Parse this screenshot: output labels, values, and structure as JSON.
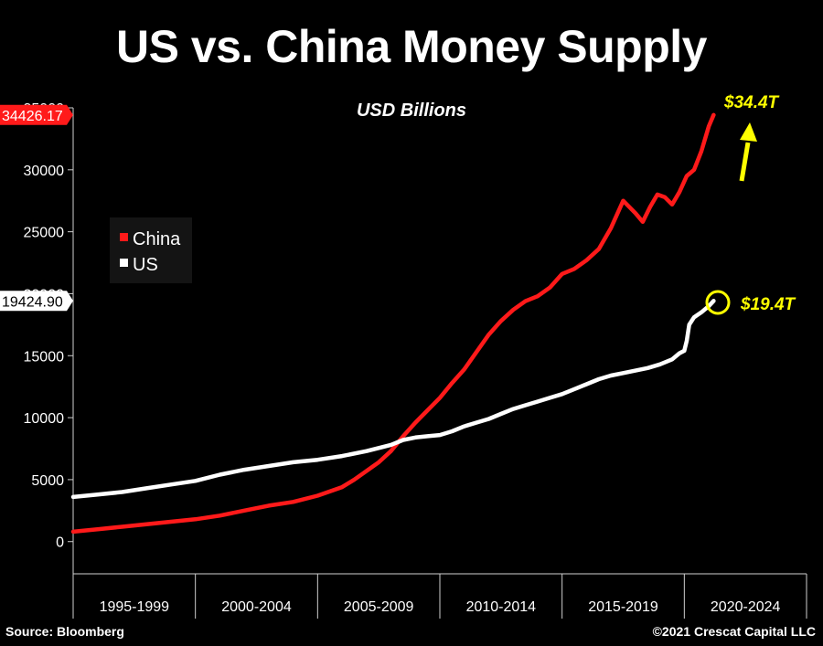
{
  "title": "US vs. China Money Supply",
  "footer": {
    "source": "Source: Bloomberg",
    "copyright": "©2021 Crescat Capital LLC"
  },
  "chart_data": {
    "type": "line",
    "subtitle": "USD Billions",
    "xlabel": "",
    "ylabel": "",
    "xlim": [
      1995,
      2025
    ],
    "ylim": [
      -2600,
      35000
    ],
    "y_ticks": [
      0,
      5000,
      10000,
      15000,
      20000,
      25000,
      30000,
      35000
    ],
    "x_period_labels": [
      "1995-1999",
      "2000-2004",
      "2005-2009",
      "2010-2014",
      "2015-2019",
      "2020-2024"
    ],
    "grid": false,
    "legend": {
      "position": "upper-left",
      "entries": [
        "China",
        "US"
      ]
    },
    "series": [
      {
        "name": "China",
        "color": "#ff1a1a",
        "last_value_label": "34426.17",
        "x": [
          1995,
          1996,
          1997,
          1998,
          1999,
          2000,
          2001,
          2002,
          2003,
          2004,
          2005,
          2006,
          2006.5,
          2007,
          2007.5,
          2008,
          2008.5,
          2009,
          2009.5,
          2010,
          2010.5,
          2011,
          2011.5,
          2012,
          2012.5,
          2013,
          2013.5,
          2014,
          2014.5,
          2015,
          2015.5,
          2016,
          2016.5,
          2017,
          2017.5,
          2018,
          2018.3,
          2018.6,
          2018.9,
          2019.2,
          2019.5,
          2019.8,
          2020.1,
          2020.4,
          2020.7,
          2021.0,
          2021.2
        ],
        "values": [
          800,
          1000,
          1200,
          1400,
          1600,
          1800,
          2100,
          2500,
          2900,
          3200,
          3700,
          4400,
          5000,
          5700,
          6400,
          7300,
          8500,
          9600,
          10600,
          11600,
          12800,
          13900,
          15300,
          16700,
          17800,
          18700,
          19400,
          19800,
          20500,
          21600,
          22000,
          22700,
          23600,
          25300,
          27500,
          26500,
          25800,
          27000,
          28000,
          27800,
          27200,
          28200,
          29500,
          30000,
          31500,
          33500,
          34426.17
        ]
      },
      {
        "name": "US",
        "color": "#ffffff",
        "last_value_label": "19424.90",
        "x": [
          1995,
          1996,
          1997,
          1998,
          1999,
          2000,
          2001,
          2002,
          2003,
          2004,
          2005,
          2006,
          2007,
          2008,
          2008.5,
          2009,
          2009.5,
          2010,
          2010.5,
          2011,
          2011.5,
          2012,
          2012.5,
          2013,
          2013.5,
          2014,
          2014.5,
          2015,
          2015.5,
          2016,
          2016.5,
          2017,
          2017.5,
          2018,
          2018.5,
          2019,
          2019.5,
          2019.8,
          2020.0,
          2020.1,
          2020.2,
          2020.4,
          2020.7,
          2021.0,
          2021.2
        ],
        "values": [
          3600,
          3800,
          4000,
          4300,
          4600,
          4900,
          5400,
          5800,
          6100,
          6400,
          6600,
          6900,
          7300,
          7800,
          8200,
          8400,
          8500,
          8600,
          8900,
          9300,
          9600,
          9900,
          10300,
          10700,
          11000,
          11300,
          11600,
          11900,
          12300,
          12700,
          13100,
          13400,
          13600,
          13800,
          14000,
          14300,
          14700,
          15200,
          15400,
          16200,
          17500,
          18100,
          18500,
          19000,
          19424.9
        ]
      }
    ],
    "annotations": [
      {
        "text": "$34.4T",
        "color": "#ffff00"
      },
      {
        "text": "$19.4T",
        "color": "#ffff00"
      }
    ]
  }
}
